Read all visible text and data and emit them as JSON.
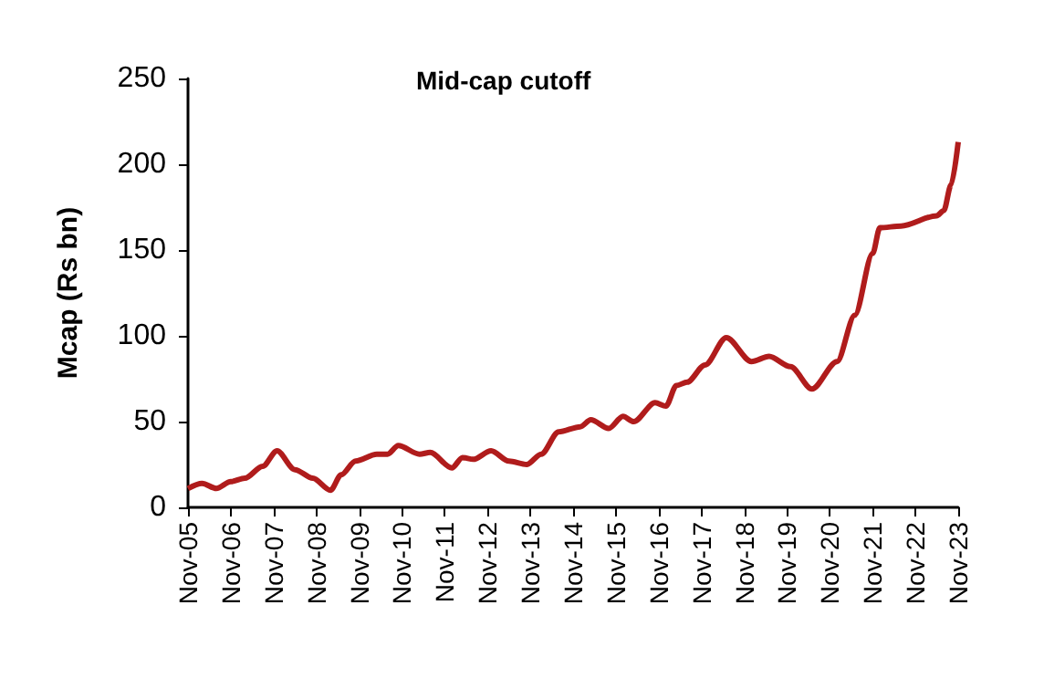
{
  "chart_data": {
    "type": "line",
    "title": "Mid-cap cutoff",
    "ylabel": "Mcap (Rs bn)",
    "x": [
      "2005-11",
      "2006-03",
      "2006-07",
      "2006-11",
      "2007-03",
      "2007-08",
      "2007-12",
      "2008-05",
      "2008-10",
      "2009-03",
      "2009-06",
      "2009-10",
      "2010-04",
      "2010-07",
      "2010-10",
      "2011-04",
      "2011-07",
      "2012-01",
      "2012-04",
      "2012-07",
      "2012-12",
      "2013-05",
      "2013-10",
      "2014-02",
      "2014-07",
      "2015-01",
      "2015-04",
      "2015-09",
      "2016-01",
      "2016-04",
      "2016-10",
      "2017-01",
      "2017-04",
      "2017-07",
      "2017-12",
      "2018-06",
      "2019-01",
      "2019-06",
      "2019-12",
      "2020-06",
      "2021-01",
      "2021-06",
      "2021-11",
      "2022-01",
      "2022-07",
      "2023-05",
      "2023-07",
      "2023-09",
      "2023-11"
    ],
    "series": [
      {
        "color": "#b01c1c",
        "values": [
          11,
          14,
          11,
          15,
          17,
          24,
          33,
          22,
          17,
          10,
          19,
          27,
          31,
          31,
          36,
          31,
          32,
          23,
          29,
          28,
          33,
          27,
          25,
          31,
          44,
          47,
          51,
          46,
          53,
          50,
          61,
          59,
          71,
          73,
          83,
          99,
          85,
          88,
          82,
          69,
          85,
          112,
          148,
          163,
          164,
          170,
          173,
          188,
          213
        ]
      }
    ],
    "xlim": [
      "2005-11",
      "2023-11"
    ],
    "xticks": [
      {
        "value": "2005-11",
        "label": "Nov-05"
      },
      {
        "value": "2006-11",
        "label": "Nov-06"
      },
      {
        "value": "2007-11",
        "label": "Nov-07"
      },
      {
        "value": "2008-11",
        "label": "Nov-08"
      },
      {
        "value": "2009-11",
        "label": "Nov-09"
      },
      {
        "value": "2010-11",
        "label": "Nov-10"
      },
      {
        "value": "2011-11",
        "label": "Nov-11"
      },
      {
        "value": "2012-11",
        "label": "Nov-12"
      },
      {
        "value": "2013-11",
        "label": "Nov-13"
      },
      {
        "value": "2014-11",
        "label": "Nov-14"
      },
      {
        "value": "2015-11",
        "label": "Nov-15"
      },
      {
        "value": "2016-11",
        "label": "Nov-16"
      },
      {
        "value": "2017-11",
        "label": "Nov-17"
      },
      {
        "value": "2018-11",
        "label": "Nov-18"
      },
      {
        "value": "2019-11",
        "label": "Nov-19"
      },
      {
        "value": "2020-11",
        "label": "Nov-20"
      },
      {
        "value": "2021-11",
        "label": "Nov-21"
      },
      {
        "value": "2022-11",
        "label": "Nov-22"
      },
      {
        "value": "2023-11",
        "label": "Nov-23"
      }
    ],
    "ylim": [
      0,
      250
    ],
    "yticks": [
      0,
      50,
      100,
      150,
      200,
      250
    ],
    "grid": false,
    "marker": "none",
    "line_style": "solid"
  }
}
